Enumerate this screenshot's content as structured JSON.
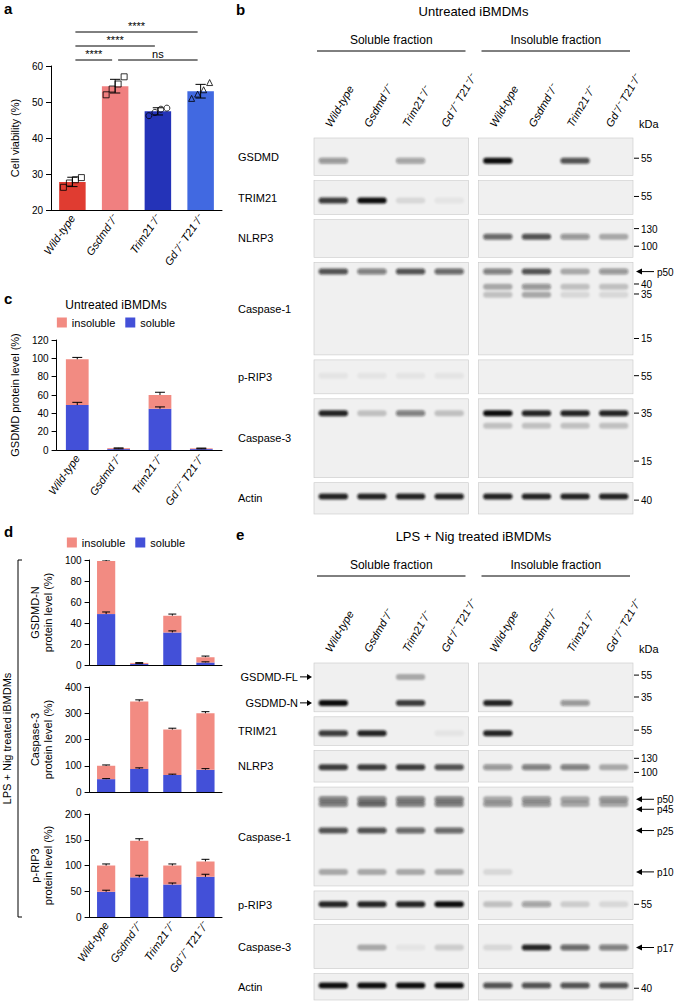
{
  "chart_data": [
    {
      "panel": "a",
      "type": "bar",
      "categories": [
        "Wild-type",
        "Gsdmd⁻/⁻",
        "Trim21⁻/⁻",
        "Gd⁻/⁻ T21⁻/⁻"
      ],
      "values": [
        27.8,
        54.4,
        47.4,
        53.0
      ],
      "errors": [
        1.3,
        1.9,
        1.0,
        1.9
      ],
      "colors": [
        "#e03c31",
        "#f08080",
        "#2433b8",
        "#4169e1"
      ],
      "points": [
        {
          "marker": "square",
          "values": [
            26.3,
            27.5,
            28.4,
            29.0
          ]
        },
        {
          "marker": "square",
          "values": [
            52.0,
            53.6,
            55.0,
            57.0
          ]
        },
        {
          "marker": "circle",
          "values": [
            46.2,
            47.1,
            48.0,
            48.3
          ]
        },
        {
          "marker": "triangle",
          "values": [
            51.0,
            52.2,
            53.4,
            55.4
          ]
        }
      ],
      "ylabel": "Cell viability (%)",
      "ylim": [
        20,
        60
      ],
      "yticks": [
        20,
        30,
        40,
        50,
        60
      ],
      "grid": false,
      "annotations": [
        {
          "text": "****",
          "from": "Wild-type",
          "to": "Gsdmd⁻/⁻"
        },
        {
          "text": "****",
          "from": "Wild-type",
          "to": "Trim21⁻/⁻"
        },
        {
          "text": "****",
          "from": "Wild-type",
          "to": "Gd⁻/⁻ T21⁻/⁻"
        },
        {
          "text": "ns",
          "from": "Gsdmd⁻/⁻",
          "to": "Gd⁻/⁻ T21⁻/⁻"
        }
      ]
    },
    {
      "panel": "c",
      "type": "bar",
      "title": "Untreated iBMDMs",
      "categories": [
        "Wild-type",
        "Gsdmd⁻/⁻",
        "Trim21⁻/⁻",
        "Gd⁻/⁻ T21⁻/⁻"
      ],
      "stacked": true,
      "legend": "top",
      "grid": false,
      "ylabel": "GSDMD protein level (%)",
      "ylim": [
        0,
        120
      ],
      "yticks": [
        0,
        20,
        40,
        60,
        80,
        100,
        120
      ],
      "series": [
        {
          "name": "soluble",
          "color": "#4350d8",
          "values": [
            49,
            1,
            45,
            1
          ],
          "errors": [
            3,
            0.3,
            2,
            0.3
          ]
        },
        {
          "name": "insoluble",
          "color": "#f28b82",
          "values": [
            50,
            1,
            15,
            0.8
          ],
          "errors": [
            2,
            0.3,
            3,
            0.3
          ]
        }
      ]
    },
    {
      "type": "bar",
      "categories": [
        "Wild-type",
        "Gsdmd⁻/⁻",
        "Trim21⁻/⁻",
        "Gd⁻/⁻ T21⁻/⁻"
      ],
      "stacked": true,
      "legend": "top",
      "tick_labels": "y",
      "grid": false,
      "ylabel": "GSDMD-N\nprotein level (%)",
      "ylim": [
        0,
        100
      ],
      "yticks": [
        0,
        20,
        40,
        60,
        80,
        100
      ],
      "series": [
        {
          "name": "soluble",
          "color": "#4350d8",
          "values": [
            48.5,
            1,
            31,
            2.5
          ],
          "errors": [
            2,
            0.3,
            1.5,
            0.5
          ]
        },
        {
          "name": "insoluble",
          "color": "#f28b82",
          "values": [
            50.5,
            1,
            16,
            5
          ],
          "errors": [
            1,
            0.3,
            1.5,
            1
          ]
        }
      ]
    },
    {
      "type": "bar",
      "categories": [
        "Wild-type",
        "Gsdmd⁻/⁻",
        "Trim21⁻/⁻",
        "Gd⁻/⁻ T21⁻/⁻"
      ],
      "stacked": true,
      "tick_labels": "y",
      "grid": false,
      "ylabel": "Caspase-3\nprotein level (%)",
      "ylim": [
        0,
        400
      ],
      "yticks": [
        0,
        100,
        200,
        300,
        400
      ],
      "series": [
        {
          "name": "soluble",
          "color": "#4350d8",
          "values": [
            49,
            88,
            65,
            85
          ],
          "errors": [
            2,
            4,
            3,
            4
          ]
        },
        {
          "name": "insoluble",
          "color": "#f28b82",
          "values": [
            51,
            257,
            173,
            215
          ],
          "errors": [
            3,
            6,
            5,
            6
          ]
        }
      ]
    },
    {
      "type": "bar",
      "categories": [
        "Wild-type",
        "Gsdmd⁻/⁻",
        "Trim21⁻/⁻",
        "Gd⁻/⁻ T21⁻/⁻"
      ],
      "stacked": true,
      "grid": false,
      "ylabel": "p-RIP3\nprotein level (%)",
      "ylim": [
        0,
        200
      ],
      "yticks": [
        0,
        50,
        100,
        150,
        200
      ],
      "series": [
        {
          "name": "soluble",
          "color": "#4350d8",
          "values": [
            49,
            77,
            63,
            78
          ],
          "errors": [
            3,
            4,
            3,
            5
          ]
        },
        {
          "name": "insoluble",
          "color": "#f28b82",
          "values": [
            51,
            71,
            37,
            30
          ],
          "errors": [
            3,
            4,
            3,
            4
          ]
        }
      ]
    }
  ],
  "d_group": {
    "panel": "d",
    "label": "LPS + Nig treated iBMDMs"
  },
  "blots": [
    {
      "panel": "b",
      "title": "Untreated iBMDMs",
      "fractions": [
        "Soluble fraction",
        "Insoluble fraction"
      ],
      "lanes": [
        "Wild-type",
        "Gsdmd⁻/⁻",
        "Trim21⁻/⁻",
        "Gd⁻/⁻ T21⁻/⁻"
      ],
      "unit": "kDa",
      "rows": [
        {
          "label": "GSDMD",
          "kda_range": [
            70,
            45
          ],
          "markers": [
            55
          ],
          "arrows": [],
          "bands": [
            {
              "kda": 53,
              "intensity": [
                0.4,
                0,
                0.35,
                0,
                1,
                0,
                0.7,
                0
              ]
            }
          ]
        },
        {
          "label": "TRIM21",
          "kda_range": [
            65,
            45
          ],
          "markers": [
            55
          ],
          "arrows": [],
          "bands": [
            {
              "kda": 52,
              "intensity": [
                0.8,
                1,
                0.1,
                0.05,
                0,
                0,
                0,
                0
              ]
            }
          ]
        },
        {
          "label": "NLRP3",
          "kda_range": [
            140,
            90
          ],
          "markers": [
            130,
            100
          ],
          "arrows": [],
          "bands": [
            {
              "kda": 115,
              "intensity": [
                0,
                0,
                0,
                0,
                0.6,
                0.7,
                0.4,
                0.3
              ]
            }
          ]
        },
        {
          "label": "Caspase-1",
          "kda_range": [
            55,
            12
          ],
          "markers": [
            40,
            35,
            15
          ],
          "arrows": [
            {
              "label": "p50",
              "kda": 50
            }
          ],
          "bands": [
            {
              "kda": 50,
              "intensity": [
                0.7,
                0.5,
                0.7,
                0.6,
                0.5,
                0.7,
                0.3,
                0.4
              ]
            },
            {
              "kda": 38,
              "intensity": [
                0,
                0,
                0,
                0,
                0.3,
                0.4,
                0.2,
                0.2
              ]
            },
            {
              "kda": 33,
              "intensity": [
                0,
                0,
                0,
                0,
                0.2,
                0.3,
                0.1,
                0.1
              ]
            }
          ]
        },
        {
          "label": "p-RIP3",
          "kda_range": [
            65,
            45
          ],
          "markers": [
            55
          ],
          "arrows": [],
          "bands": [
            {
              "kda": 55,
              "intensity": [
                0.05,
                0.05,
                0.05,
                0.05,
                0,
                0,
                0,
                0
              ]
            }
          ]
        },
        {
          "label": "Caspase-3",
          "kda_range": [
            42,
            12
          ],
          "markers": [
            35,
            15
          ],
          "arrows": [],
          "bands": [
            {
              "kda": 35,
              "intensity": [
                0.9,
                0.2,
                0.5,
                0.2,
                1,
                0.9,
                0.9,
                0.9
              ]
            },
            {
              "kda": 28,
              "intensity": [
                0,
                0,
                0,
                0,
                0.2,
                0.2,
                0.2,
                0.2
              ]
            }
          ]
        },
        {
          "label": "Actin",
          "kda_range": [
            48,
            35
          ],
          "markers": [
            40
          ],
          "arrows": [],
          "bands": [
            {
              "kda": 42,
              "intensity": [
                0.9,
                0.9,
                0.9,
                0.9,
                0.9,
                0.9,
                0.9,
                0.9
              ]
            }
          ]
        }
      ]
    },
    {
      "panel": "e",
      "title": "LPS + Nig treated iBMDMs",
      "fractions": [
        "Soluble fraction",
        "Insoluble fraction"
      ],
      "lanes": [
        "Wild-type",
        "Gsdmd⁻/⁻",
        "Trim21⁻/⁻",
        "Gd⁻/⁻ T21⁻/⁻"
      ],
      "unit": "kDa",
      "rows": [
        {
          "left_arrows": [
            {
              "label": "GSDMD-FL",
              "kda": 53
            },
            {
              "label": "GSDMD-N",
              "kda": 31
            }
          ],
          "kda_range": [
            65,
            28
          ],
          "markers": [
            55,
            35
          ],
          "arrows": [],
          "bands": [
            {
              "kda": 53,
              "intensity": [
                0,
                0,
                0.3,
                0,
                0,
                0,
                0,
                0
              ]
            },
            {
              "kda": 31,
              "intensity": [
                1,
                0,
                0.8,
                0,
                0.9,
                0,
                0.4,
                0
              ]
            }
          ]
        },
        {
          "label": "TRIM21",
          "kda_range": [
            65,
            45
          ],
          "markers": [
            55
          ],
          "arrows": [],
          "bands": [
            {
              "kda": 52,
              "intensity": [
                0.8,
                0.9,
                0,
                0.05,
                0.9,
                0,
                0,
                0
              ]
            }
          ]
        },
        {
          "label": "NLRP3",
          "kda_range": [
            140,
            90
          ],
          "markers": [
            130,
            100
          ],
          "arrows": [],
          "bands": [
            {
              "kda": 110,
              "intensity": [
                0.8,
                0.8,
                0.8,
                0.7,
                0.4,
                0.5,
                0.5,
                0.3
              ]
            }
          ]
        },
        {
          "label": "Caspase-1",
          "kda_range": [
            60,
            8
          ],
          "markers": [],
          "arrows": [
            {
              "label": "p50",
              "kda": 50
            },
            {
              "label": "p45",
              "kda": 45
            },
            {
              "label": "p25",
              "kda": 25
            },
            {
              "label": "p10",
              "kda": 10
            }
          ],
          "bands": [
            {
              "kda": 50,
              "intensity": [
                0.5,
                0.5,
                0.5,
                0.5,
                0.3,
                0.4,
                0.3,
                0.4
              ]
            },
            {
              "kda": 45,
              "intensity": [
                0.5,
                0.6,
                0.5,
                0.5,
                0.4,
                0.4,
                0.3,
                0.3
              ]
            },
            {
              "kda": 25,
              "intensity": [
                0.7,
                0.7,
                0.6,
                0.6,
                0,
                0,
                0,
                0
              ]
            },
            {
              "kda": 10,
              "intensity": [
                0.3,
                0.3,
                0.3,
                0.3,
                0.1,
                0,
                0,
                0
              ]
            }
          ]
        },
        {
          "label": "p-RIP3",
          "kda_range": [
            65,
            45
          ],
          "markers": [
            55
          ],
          "arrows": [],
          "bands": [
            {
              "kda": 55,
              "intensity": [
                0.9,
                0.9,
                0.9,
                1,
                0.2,
                0.35,
                0.15,
                0.1
              ]
            }
          ]
        },
        {
          "label": "Caspase-3",
          "kda_range": [
            25,
            12
          ],
          "markers": [],
          "arrows": [
            {
              "label": "p17",
              "kda": 17
            }
          ],
          "bands": [
            {
              "kda": 17,
              "intensity": [
                0,
                0.3,
                0.05,
                0.15,
                0.1,
                0.9,
                0.6,
                0.5
              ]
            }
          ]
        },
        {
          "label": "Actin",
          "kda_range": [
            48,
            35
          ],
          "markers": [
            40
          ],
          "arrows": [],
          "bands": [
            {
              "kda": 42,
              "intensity": [
                1,
                1,
                1,
                1,
                0.7,
                0.7,
                0.7,
                0.7
              ]
            }
          ]
        }
      ]
    }
  ]
}
